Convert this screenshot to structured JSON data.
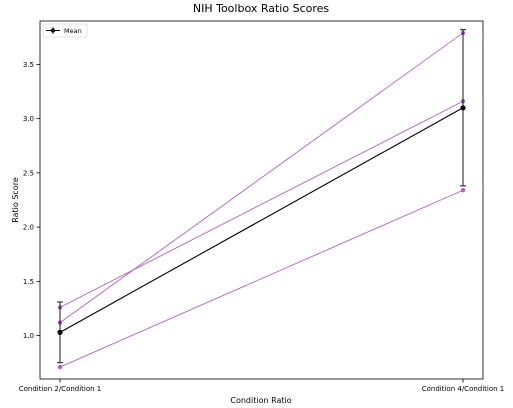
{
  "chart_data": {
    "type": "line",
    "title": "NIH Toolbox Ratio Scores",
    "xlabel": "Condition Ratio",
    "ylabel": "Ratio Score",
    "categories": [
      "Condition 2/Condition 1",
      "Condition 4/Condition 1"
    ],
    "ylim": [
      0.6,
      3.9
    ],
    "yticks": [
      1.0,
      1.5,
      2.0,
      2.5,
      3.0,
      3.5
    ],
    "ytick_labels": [
      "1.0",
      "1.5",
      "2.0",
      "2.5",
      "3.0",
      "3.5"
    ],
    "grid": false,
    "legend_position": "top-left",
    "subjects": [
      {
        "values": [
          1.12,
          3.79
        ]
      },
      {
        "values": [
          1.26,
          3.16
        ]
      },
      {
        "values": [
          0.71,
          2.34
        ]
      }
    ],
    "mean": {
      "name": "Mean",
      "values": [
        1.03,
        3.1
      ],
      "errors": [
        0.28,
        0.72
      ]
    },
    "colors": {
      "subject": "#b05fc4",
      "mean": "#000000"
    }
  }
}
